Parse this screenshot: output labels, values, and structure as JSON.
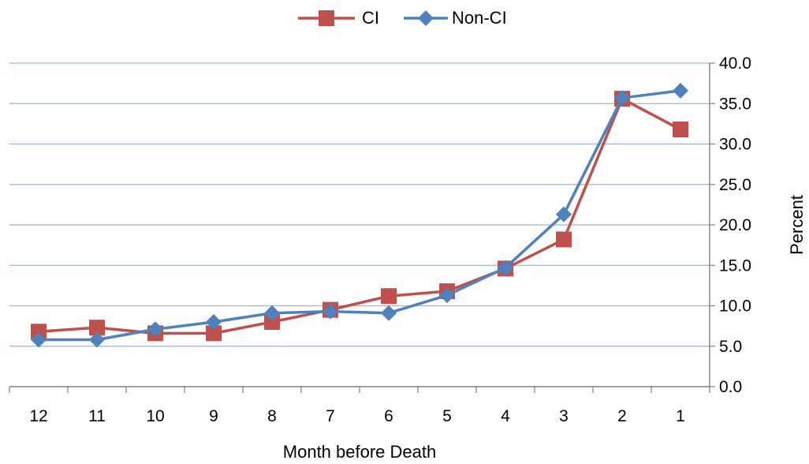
{
  "chart_data": {
    "type": "line",
    "categories": [
      "12",
      "11",
      "10",
      "9",
      "8",
      "7",
      "6",
      "5",
      "4",
      "3",
      "2",
      "1"
    ],
    "series": [
      {
        "name": "CI",
        "color": "#C0504D",
        "marker": "square",
        "values": [
          6.8,
          7.3,
          6.6,
          6.6,
          8.0,
          9.5,
          11.2,
          11.8,
          14.6,
          18.2,
          35.6,
          31.8
        ]
      },
      {
        "name": "Non-CI",
        "color": "#4F81BD",
        "marker": "diamond",
        "values": [
          5.8,
          5.8,
          7.1,
          8.0,
          9.1,
          9.3,
          9.1,
          11.3,
          14.7,
          21.3,
          35.7,
          36.6
        ]
      }
    ],
    "xlabel": "Month before Death",
    "ylabel": "Percent",
    "ylim": [
      0,
      40
    ],
    "yticks": [
      "0.0",
      "5.0",
      "10.0",
      "15.0",
      "20.0",
      "25.0",
      "30.0",
      "35.0",
      "40.0"
    ],
    "grid": true,
    "y_axis_side": "right",
    "legend_position": "top-center"
  }
}
